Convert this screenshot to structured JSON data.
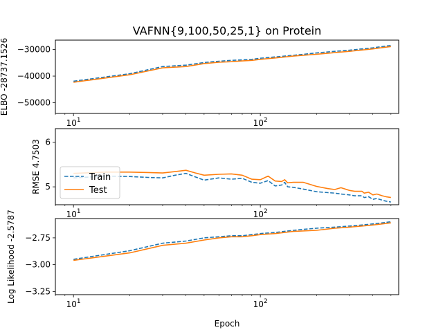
{
  "figure_title": "VAFNN{9,100,50,25,1} on Protein",
  "chart_data": [
    {
      "type": "line",
      "title": "VAFNN{9,100,50,25,1} on Protein",
      "xlabel": "",
      "ylabel": "ELBO -28737.1526",
      "xscale": "log",
      "xlim": [
        8,
        550
      ],
      "ylim": [
        -54000,
        -26500
      ],
      "x_tick_labels": [
        {
          "base": "10",
          "exp": "1",
          "value": 10
        },
        {
          "base": "10",
          "exp": "2",
          "value": 100
        }
      ],
      "y_ticks": [
        {
          "value": -50000,
          "label": "−50000"
        },
        {
          "value": -40000,
          "label": "−40000"
        },
        {
          "value": -30000,
          "label": "−30000"
        }
      ],
      "legend": null,
      "series": [
        {
          "style": "dashed",
          "color": "#1f77b4",
          "x": [
            10,
            20,
            30,
            40,
            50,
            60,
            70,
            80,
            90,
            100,
            120,
            150,
            200,
            250,
            300,
            350,
            400,
            450,
            500
          ],
          "y": [
            -41900,
            -39100,
            -36400,
            -35900,
            -34900,
            -34400,
            -34100,
            -33900,
            -33700,
            -33300,
            -32800,
            -32200,
            -31300,
            -30700,
            -30300,
            -29800,
            -29400,
            -28900,
            -28500
          ]
        },
        {
          "style": "solid",
          "color": "#ff7f0e",
          "x": [
            10,
            20,
            30,
            40,
            50,
            60,
            70,
            80,
            90,
            100,
            120,
            150,
            200,
            250,
            300,
            350,
            400,
            450,
            500
          ],
          "y": [
            -42300,
            -39500,
            -36900,
            -36400,
            -35300,
            -34800,
            -34600,
            -34300,
            -34100,
            -33700,
            -33200,
            -32500,
            -31800,
            -31200,
            -30700,
            -30200,
            -29800,
            -29300,
            -28900
          ]
        }
      ]
    },
    {
      "type": "line",
      "title": "",
      "xlabel": "",
      "ylabel": "RMSE 4.7503",
      "xscale": "log",
      "xlim": [
        8,
        550
      ],
      "ylim": [
        4.6,
        6.3
      ],
      "x_tick_labels": [
        {
          "base": "10",
          "exp": "1",
          "value": 10
        },
        {
          "base": "10",
          "exp": "2",
          "value": 100
        }
      ],
      "y_ticks": [
        {
          "value": 5,
          "label": "5"
        },
        {
          "value": 6,
          "label": "6"
        }
      ],
      "legend": {
        "placement": "center-left",
        "entries": [
          {
            "name": "Train",
            "style": "dashed",
            "color": "#1f77b4"
          },
          {
            "name": "Test",
            "style": "solid",
            "color": "#ff7f0e"
          }
        ]
      },
      "series": [
        {
          "name": "Train",
          "style": "dashed",
          "color": "#1f77b4",
          "x": [
            10,
            15,
            20,
            25,
            30,
            35,
            40,
            45,
            50,
            60,
            70,
            80,
            90,
            100,
            110,
            120,
            130,
            135,
            140,
            150,
            170,
            200,
            230,
            250,
            270,
            300,
            320,
            350,
            360,
            380,
            400,
            420,
            450,
            470,
            500
          ],
          "y": [
            5.2,
            5.24,
            5.23,
            5.21,
            5.2,
            5.26,
            5.3,
            5.22,
            5.15,
            5.2,
            5.17,
            5.19,
            5.1,
            5.08,
            5.14,
            5.02,
            5.04,
            5.1,
            5.0,
            4.99,
            4.95,
            4.89,
            4.87,
            4.86,
            4.84,
            4.82,
            4.8,
            4.8,
            4.76,
            4.78,
            4.72,
            4.74,
            4.7,
            4.68,
            4.66
          ]
        },
        {
          "name": "Test",
          "style": "solid",
          "color": "#ff7f0e",
          "x": [
            10,
            15,
            20,
            25,
            30,
            35,
            40,
            45,
            50,
            60,
            70,
            80,
            90,
            100,
            110,
            120,
            130,
            135,
            140,
            150,
            170,
            200,
            230,
            250,
            270,
            300,
            320,
            350,
            360,
            380,
            400,
            420,
            450,
            470,
            500
          ],
          "y": [
            5.3,
            5.33,
            5.33,
            5.32,
            5.31,
            5.34,
            5.37,
            5.31,
            5.26,
            5.28,
            5.29,
            5.26,
            5.17,
            5.16,
            5.24,
            5.13,
            5.12,
            5.16,
            5.09,
            5.1,
            5.1,
            5.01,
            4.96,
            4.94,
            4.98,
            4.92,
            4.9,
            4.9,
            4.86,
            4.88,
            4.82,
            4.84,
            4.8,
            4.78,
            4.76
          ]
        }
      ]
    },
    {
      "type": "line",
      "title": "",
      "xlabel": "Epoch",
      "ylabel": "Log Likelihood -2.5787",
      "xscale": "log",
      "xlim": [
        8,
        550
      ],
      "ylim": [
        -3.28,
        -2.57
      ],
      "x_tick_labels": [
        {
          "base": "10",
          "exp": "1",
          "value": 10
        },
        {
          "base": "10",
          "exp": "2",
          "value": 100
        }
      ],
      "y_ticks": [
        {
          "value": -3.25,
          "label": "−3.25"
        },
        {
          "value": -3.0,
          "label": "−3.00"
        },
        {
          "value": -2.75,
          "label": "−2.75"
        }
      ],
      "legend": null,
      "series": [
        {
          "style": "dashed",
          "color": "#1f77b4",
          "x": [
            10,
            20,
            30,
            40,
            50,
            60,
            70,
            80,
            90,
            100,
            120,
            150,
            200,
            250,
            300,
            350,
            400,
            450,
            500
          ],
          "y": [
            -2.95,
            -2.87,
            -2.8,
            -2.78,
            -2.75,
            -2.74,
            -2.73,
            -2.73,
            -2.72,
            -2.71,
            -2.7,
            -2.68,
            -2.66,
            -2.65,
            -2.64,
            -2.63,
            -2.62,
            -2.61,
            -2.6
          ]
        },
        {
          "style": "solid",
          "color": "#ff7f0e",
          "x": [
            10,
            20,
            30,
            40,
            50,
            60,
            70,
            80,
            90,
            100,
            120,
            150,
            200,
            250,
            300,
            350,
            400,
            450,
            500
          ],
          "y": [
            -2.96,
            -2.89,
            -2.82,
            -2.8,
            -2.77,
            -2.75,
            -2.74,
            -2.74,
            -2.73,
            -2.72,
            -2.71,
            -2.69,
            -2.68,
            -2.66,
            -2.65,
            -2.64,
            -2.63,
            -2.62,
            -2.61
          ]
        }
      ]
    }
  ]
}
